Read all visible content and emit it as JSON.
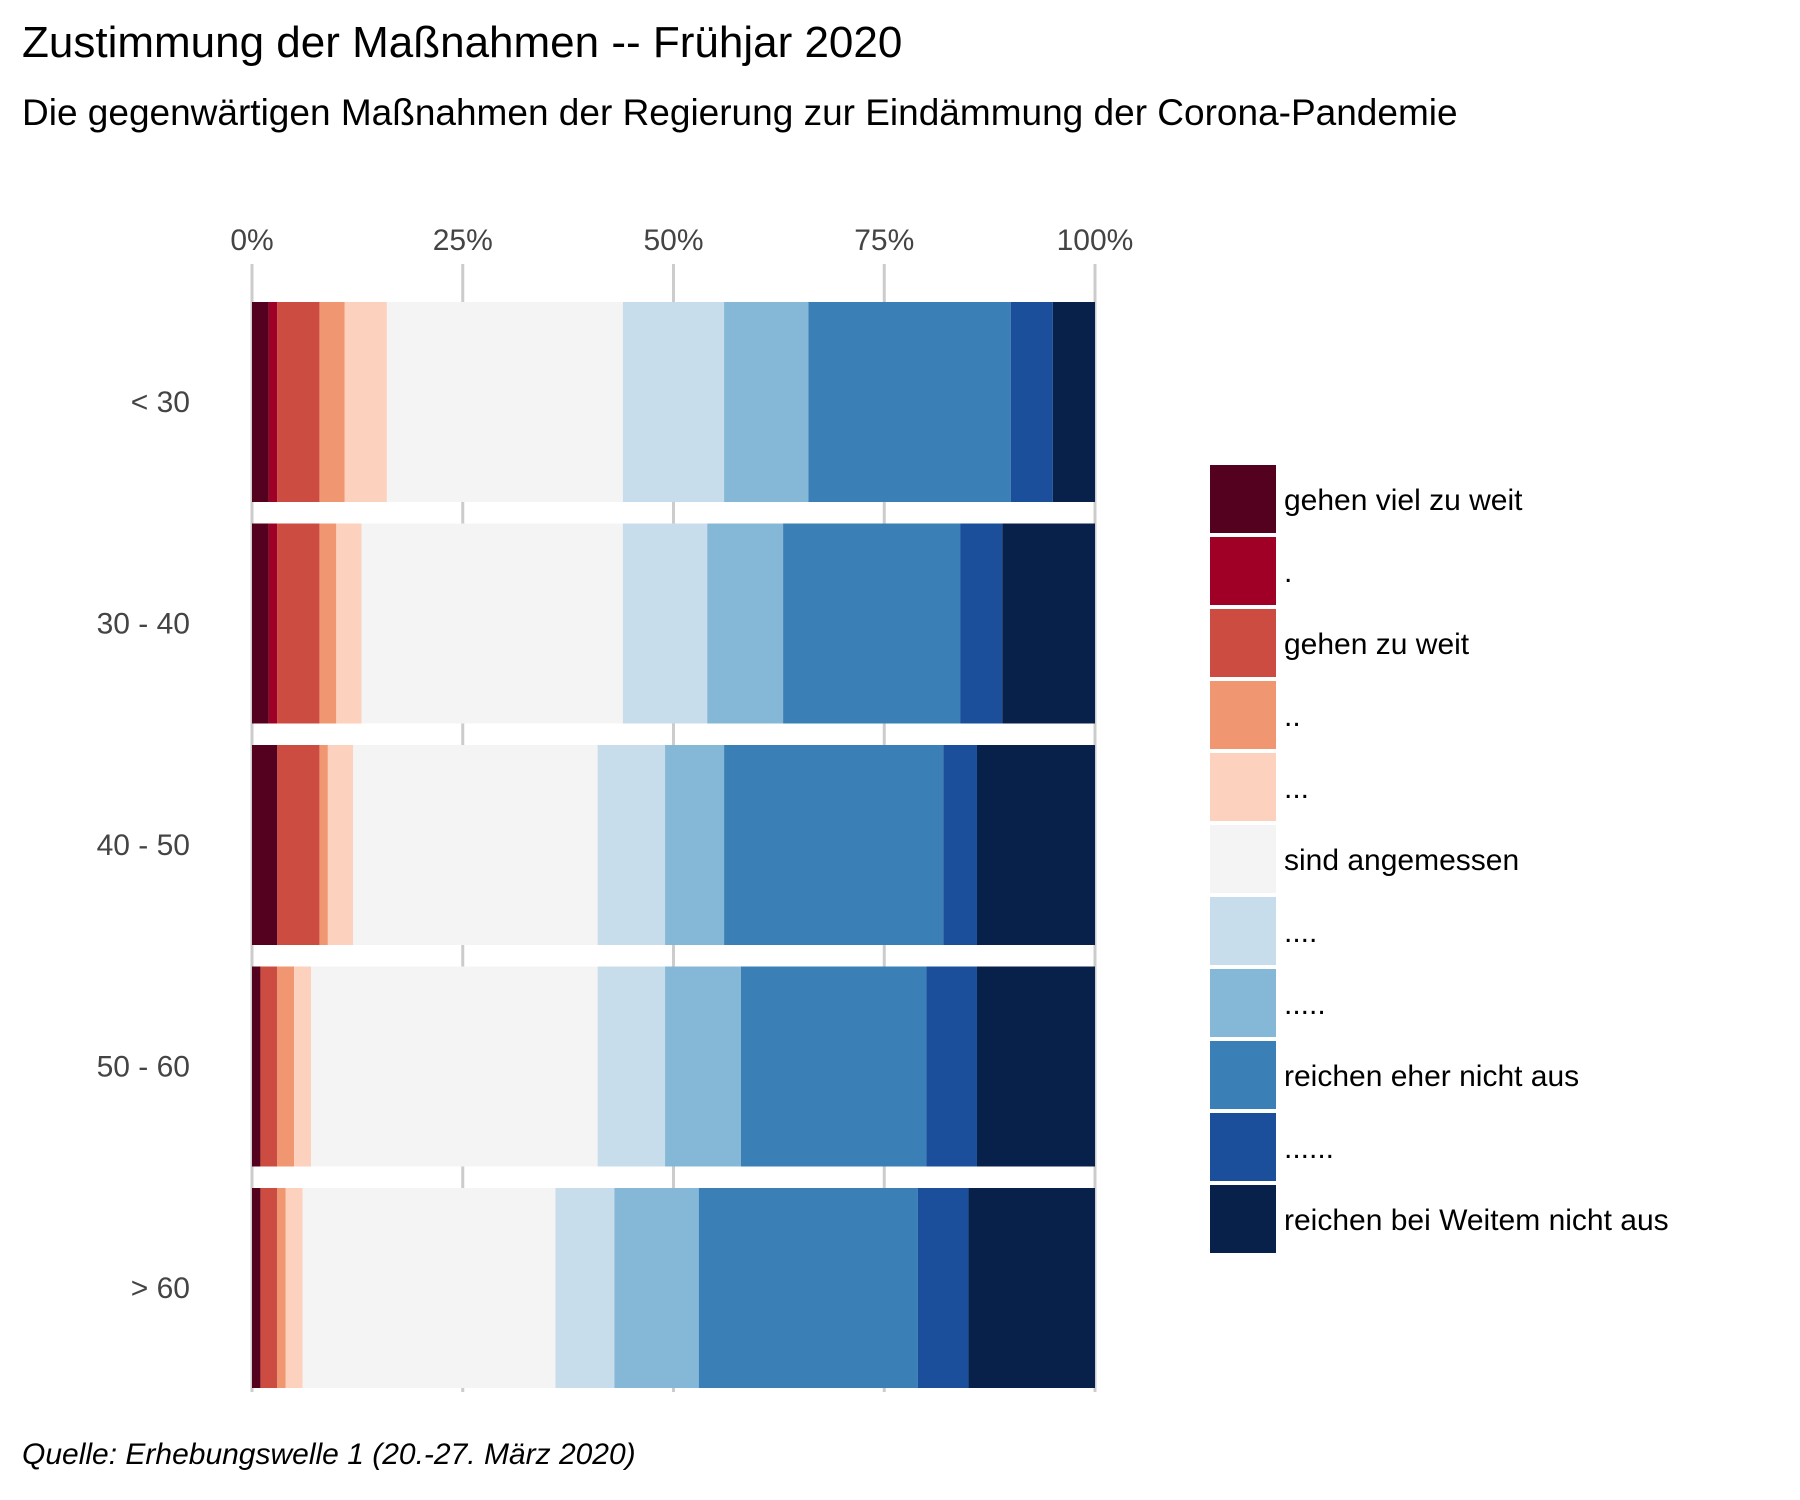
{
  "chart_data": {
    "type": "bar",
    "orientation": "horizontal",
    "stacked": "percent",
    "title": "Zustimmung der Maßnahmen -- Frühjar 2020",
    "subtitle": "Die gegenwärtigen Maßnahmen der Regierung zur Eindämmung der Corona-Pandemie",
    "caption": "Quelle: Erhebungswelle 1 (20.-27. März 2020)",
    "xlabel": "",
    "ylabel": "",
    "xlim": [
      0,
      100
    ],
    "x_ticks": [
      "0%",
      "25%",
      "50%",
      "75%",
      "100%"
    ],
    "x_tick_values": [
      0,
      25,
      50,
      75,
      100
    ],
    "x_axis_position": "top",
    "grid": "vertical-major",
    "legend_position": "right",
    "categories": [
      "< 30",
      "30 - 40",
      "40 - 50",
      "50 - 60",
      "> 60"
    ],
    "series": [
      {
        "name": "gehen viel zu weit",
        "color": "#54001f",
        "values": [
          2.0,
          2.0,
          3.0,
          1.0,
          1.0
        ]
      },
      {
        "name": ".",
        "color": "#a10026",
        "values": [
          1.0,
          1.0,
          0.0,
          0.0,
          0.0
        ]
      },
      {
        "name": "gehen zu weit",
        "color": "#cc4c41",
        "values": [
          5.0,
          5.0,
          5.0,
          2.0,
          2.0
        ]
      },
      {
        "name": "..",
        "color": "#f09671",
        "values": [
          3.0,
          2.0,
          1.0,
          2.0,
          1.0
        ]
      },
      {
        "name": "...",
        "color": "#fcd1bd",
        "values": [
          5.0,
          3.0,
          3.0,
          2.0,
          2.0
        ]
      },
      {
        "name": "sind angemessen",
        "color": "#f4f4f4",
        "values": [
          28.0,
          31.0,
          29.0,
          34.0,
          30.0
        ]
      },
      {
        "name": "....",
        "color": "#c7ddeb",
        "values": [
          12.0,
          10.0,
          8.0,
          8.0,
          7.0
        ]
      },
      {
        "name": ".....",
        "color": "#84b8d6",
        "values": [
          10.0,
          9.0,
          7.0,
          9.0,
          10.0
        ]
      },
      {
        "name": "reichen eher nicht aus",
        "color": "#3a80b6",
        "values": [
          24.0,
          21.0,
          26.0,
          22.0,
          26.0
        ]
      },
      {
        "name": "......",
        "color": "#1c4f9b",
        "values": [
          5.0,
          5.0,
          4.0,
          6.0,
          6.0
        ]
      },
      {
        "name": "reichen bei Weitem nicht aus",
        "color": "#08214b",
        "values": [
          5.0,
          11.0,
          14.0,
          14.0,
          15.0
        ]
      }
    ]
  }
}
